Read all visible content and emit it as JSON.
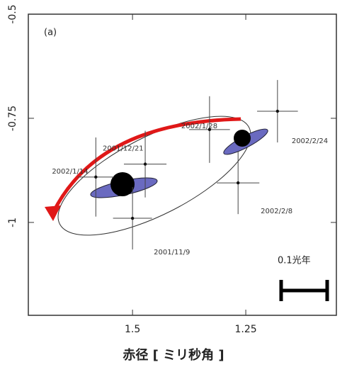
{
  "chart_data": {
    "type": "scatter",
    "panel_label": "(a)",
    "x": [
      1.5,
      1.472,
      1.581,
      1.33,
      1.267,
      1.18
    ],
    "xerr": [
      0.043,
      0.047,
      0.04,
      0.045,
      0.047,
      0.045
    ],
    "series": [
      {
        "color": "#111111",
        "values": [
          -0.99,
          -0.86,
          -0.891,
          -0.777,
          -0.905,
          -0.733
        ],
        "yerr": [
          0.075,
          0.08,
          0.095,
          0.08,
          0.075,
          0.075
        ]
      }
    ],
    "point_labels": [
      "2001/11/9",
      "2001/12/21",
      "2002/1/14",
      "2002/1/28",
      "2002/2/8",
      "2002/2/24"
    ],
    "xlim": [
      1.73,
      1.05
    ],
    "ylim": [
      -1.223,
      -0.5
    ],
    "xticks": [
      1.5,
      1.25
    ],
    "yticks": [
      -0.5,
      -0.75,
      -1
    ],
    "xlabel": "赤径 [ ミリ秒角 ]",
    "scale_bar_label": "0.1光年"
  }
}
